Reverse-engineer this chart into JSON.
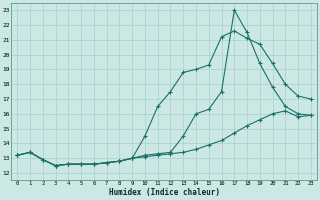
{
  "xlabel": "Humidex (Indice chaleur)",
  "bg_color": "#cce8e4",
  "grid_color": "#a8d0cc",
  "line_color": "#1a7068",
  "xlim": [
    -0.5,
    23.5
  ],
  "ylim": [
    11.5,
    23.5
  ],
  "yticks": [
    12,
    13,
    14,
    15,
    16,
    17,
    18,
    19,
    20,
    21,
    22,
    23
  ],
  "xticks": [
    0,
    1,
    2,
    3,
    4,
    5,
    6,
    7,
    8,
    9,
    10,
    11,
    12,
    13,
    14,
    15,
    16,
    17,
    18,
    19,
    20,
    21,
    22,
    23
  ],
  "line1_x": [
    0,
    1,
    2,
    3,
    4,
    5,
    6,
    7,
    8,
    9,
    10,
    11,
    12,
    13,
    14,
    15,
    16,
    17,
    18,
    19,
    20,
    21,
    22,
    23
  ],
  "line1_y": [
    13.2,
    13.4,
    12.9,
    12.5,
    12.6,
    12.6,
    12.6,
    12.7,
    12.8,
    13.0,
    13.1,
    13.2,
    13.3,
    13.4,
    13.6,
    13.9,
    14.2,
    14.7,
    15.2,
    15.6,
    16.0,
    16.2,
    15.8,
    15.9
  ],
  "line2_x": [
    0,
    1,
    2,
    3,
    4,
    5,
    6,
    7,
    8,
    9,
    10,
    11,
    12,
    13,
    14,
    15,
    16,
    17,
    18,
    19,
    20,
    21,
    22,
    23
  ],
  "line2_y": [
    13.2,
    13.4,
    12.9,
    12.5,
    12.6,
    12.6,
    12.6,
    12.7,
    12.8,
    13.0,
    14.5,
    16.5,
    17.5,
    18.8,
    19.0,
    19.3,
    21.2,
    21.6,
    21.1,
    20.7,
    19.4,
    18.0,
    17.2,
    17.0
  ],
  "line3_x": [
    0,
    1,
    2,
    3,
    4,
    5,
    6,
    7,
    8,
    9,
    10,
    11,
    12,
    13,
    14,
    15,
    16,
    17,
    18,
    19,
    20,
    21,
    22,
    23
  ],
  "line3_y": [
    13.2,
    13.4,
    12.9,
    12.5,
    12.6,
    12.6,
    12.6,
    12.7,
    12.8,
    13.0,
    13.2,
    13.3,
    13.4,
    14.5,
    16.0,
    16.3,
    17.5,
    23.0,
    21.5,
    19.4,
    17.8,
    16.5,
    16.0,
    15.9
  ]
}
